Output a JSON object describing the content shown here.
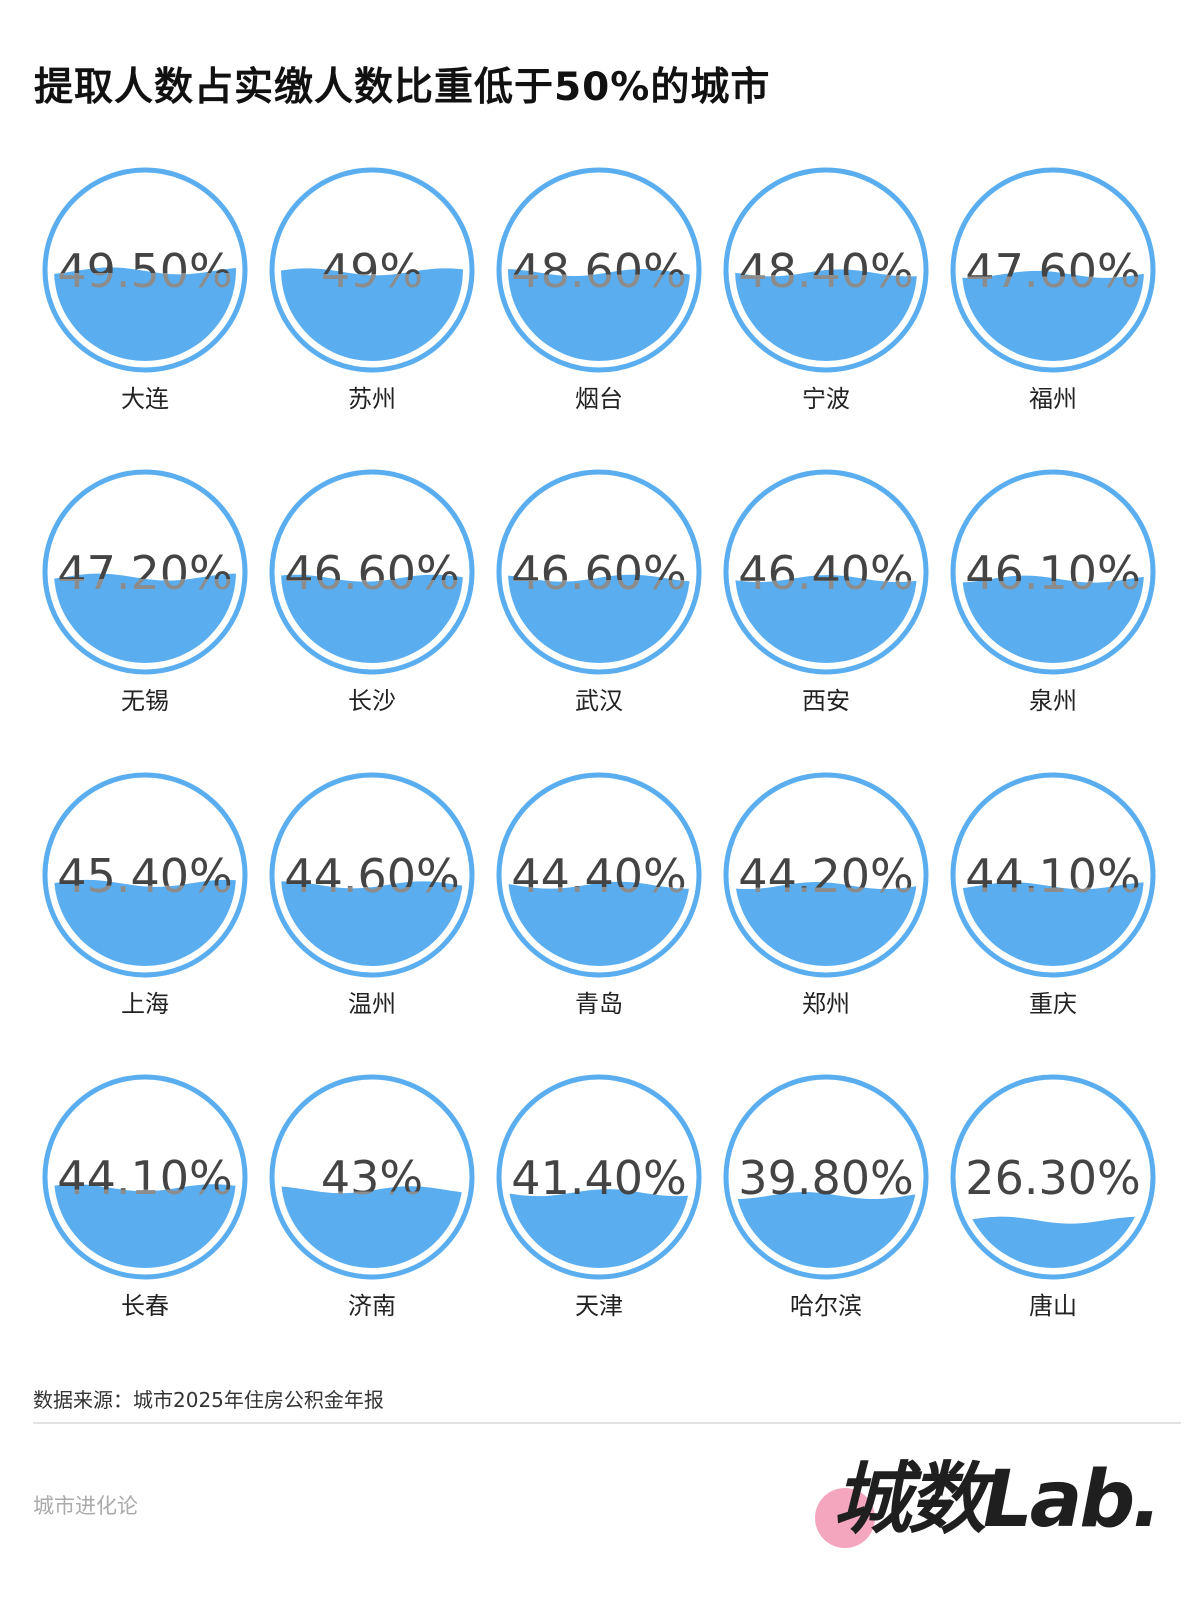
{
  "title": "提取人数占实缴人数比重低于50%的城市",
  "source": "数据来源：城市2025年住房公积金年报",
  "brand": "城市进化论",
  "logo": "城数Lab.",
  "colors": {
    "water": "#5aaeef",
    "ring": "#5aaeef",
    "text_dark": "#444444",
    "text_in_water": "#8c8c8c"
  },
  "chart_data": {
    "type": "liquid-fill",
    "title": "提取人数占实缴人数比重低于50%的城市",
    "unit": "%",
    "items": [
      {
        "city": "大连",
        "label": "49.50%",
        "value": 49.5
      },
      {
        "city": "苏州",
        "label": "49%",
        "value": 49
      },
      {
        "city": "烟台",
        "label": "48.60%",
        "value": 48.6
      },
      {
        "city": "宁波",
        "label": "48.40%",
        "value": 48.4
      },
      {
        "city": "福州",
        "label": "47.60%",
        "value": 47.6
      },
      {
        "city": "无锡",
        "label": "47.20%",
        "value": 47.2
      },
      {
        "city": "长沙",
        "label": "46.60%",
        "value": 46.6
      },
      {
        "city": "武汉",
        "label": "46.60%",
        "value": 46.6
      },
      {
        "city": "西安",
        "label": "46.40%",
        "value": 46.4
      },
      {
        "city": "泉州",
        "label": "46.10%",
        "value": 46.1
      },
      {
        "city": "上海",
        "label": "45.40%",
        "value": 45.4
      },
      {
        "city": "温州",
        "label": "44.60%",
        "value": 44.6
      },
      {
        "city": "青岛",
        "label": "44.40%",
        "value": 44.4
      },
      {
        "city": "郑州",
        "label": "44.20%",
        "value": 44.2
      },
      {
        "city": "重庆",
        "label": "44.10%",
        "value": 44.1
      },
      {
        "city": "长春",
        "label": "44.10%",
        "value": 44.1
      },
      {
        "city": "济南",
        "label": "43%",
        "value": 43
      },
      {
        "city": "天津",
        "label": "41.40%",
        "value": 41.4
      },
      {
        "city": "哈尔滨",
        "label": "39.80%",
        "value": 39.8
      },
      {
        "city": "唐山",
        "label": "26.30%",
        "value": 26.3
      }
    ]
  }
}
